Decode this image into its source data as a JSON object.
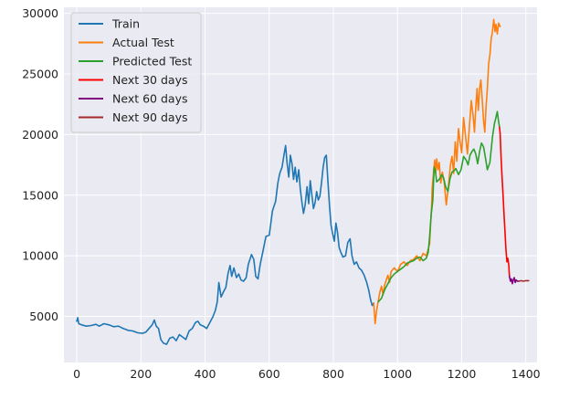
{
  "chart_data": {
    "type": "line",
    "title": "",
    "xlabel": "",
    "ylabel": "",
    "xlim": [
      -40,
      1435
    ],
    "ylim": [
      1200,
      30500
    ],
    "x_ticks": [
      0,
      200,
      400,
      600,
      800,
      1000,
      1200,
      1400
    ],
    "y_ticks": [
      5000,
      10000,
      15000,
      20000,
      25000,
      30000
    ],
    "grid": true,
    "legend_position": "top-left",
    "series": [
      {
        "name": "Train",
        "color": "#1f77b4",
        "points": [
          [
            0,
            4600
          ],
          [
            3,
            4900
          ],
          [
            6,
            4400
          ],
          [
            15,
            4300
          ],
          [
            30,
            4200
          ],
          [
            45,
            4250
          ],
          [
            60,
            4350
          ],
          [
            70,
            4200
          ],
          [
            85,
            4400
          ],
          [
            100,
            4300
          ],
          [
            115,
            4150
          ],
          [
            130,
            4200
          ],
          [
            145,
            4000
          ],
          [
            160,
            3850
          ],
          [
            175,
            3800
          ],
          [
            190,
            3650
          ],
          [
            205,
            3600
          ],
          [
            215,
            3700
          ],
          [
            225,
            4000
          ],
          [
            235,
            4300
          ],
          [
            242,
            4700
          ],
          [
            248,
            4200
          ],
          [
            255,
            4000
          ],
          [
            262,
            3100
          ],
          [
            270,
            2800
          ],
          [
            280,
            2700
          ],
          [
            290,
            3200
          ],
          [
            300,
            3300
          ],
          [
            310,
            3000
          ],
          [
            320,
            3500
          ],
          [
            330,
            3300
          ],
          [
            340,
            3100
          ],
          [
            350,
            3800
          ],
          [
            360,
            4000
          ],
          [
            370,
            4500
          ],
          [
            378,
            4600
          ],
          [
            385,
            4300
          ],
          [
            395,
            4200
          ],
          [
            405,
            4000
          ],
          [
            415,
            4500
          ],
          [
            425,
            5000
          ],
          [
            432,
            5500
          ],
          [
            438,
            6200
          ],
          [
            443,
            7800
          ],
          [
            450,
            6600
          ],
          [
            457,
            7000
          ],
          [
            465,
            7400
          ],
          [
            472,
            8600
          ],
          [
            478,
            9200
          ],
          [
            483,
            8300
          ],
          [
            490,
            9000
          ],
          [
            498,
            8200
          ],
          [
            505,
            8500
          ],
          [
            512,
            8000
          ],
          [
            520,
            7900
          ],
          [
            528,
            8200
          ],
          [
            535,
            9300
          ],
          [
            545,
            10100
          ],
          [
            552,
            9700
          ],
          [
            558,
            8300
          ],
          [
            565,
            8100
          ],
          [
            572,
            9300
          ],
          [
            580,
            10300
          ],
          [
            590,
            11600
          ],
          [
            600,
            11700
          ],
          [
            610,
            13700
          ],
          [
            620,
            14500
          ],
          [
            627,
            16000
          ],
          [
            633,
            16800
          ],
          [
            640,
            17300
          ],
          [
            646,
            18300
          ],
          [
            651,
            19100
          ],
          [
            656,
            17600
          ],
          [
            661,
            16500
          ],
          [
            666,
            18300
          ],
          [
            671,
            17600
          ],
          [
            676,
            16300
          ],
          [
            681,
            17300
          ],
          [
            686,
            16100
          ],
          [
            692,
            17100
          ],
          [
            697,
            15500
          ],
          [
            702,
            14400
          ],
          [
            707,
            13500
          ],
          [
            712,
            14200
          ],
          [
            718,
            15700
          ],
          [
            723,
            14300
          ],
          [
            728,
            16200
          ],
          [
            733,
            15000
          ],
          [
            738,
            13900
          ],
          [
            743,
            14400
          ],
          [
            748,
            15300
          ],
          [
            753,
            14600
          ],
          [
            758,
            14900
          ],
          [
            763,
            16000
          ],
          [
            768,
            17300
          ],
          [
            773,
            18100
          ],
          [
            778,
            18300
          ],
          [
            783,
            16200
          ],
          [
            788,
            14100
          ],
          [
            793,
            12500
          ],
          [
            798,
            11800
          ],
          [
            803,
            11200
          ],
          [
            808,
            12700
          ],
          [
            813,
            11900
          ],
          [
            818,
            10700
          ],
          [
            823,
            10300
          ],
          [
            830,
            9900
          ],
          [
            838,
            10000
          ],
          [
            845,
            11100
          ],
          [
            852,
            11400
          ],
          [
            858,
            10000
          ],
          [
            865,
            9300
          ],
          [
            872,
            9500
          ],
          [
            880,
            9000
          ],
          [
            888,
            8800
          ],
          [
            896,
            8400
          ],
          [
            904,
            7800
          ],
          [
            910,
            7200
          ],
          [
            916,
            6400
          ],
          [
            921,
            5900
          ],
          [
            926,
            6100
          ]
        ]
      },
      {
        "name": "Actual Test",
        "color": "#ff7f0e",
        "points": [
          [
            926,
            6100
          ],
          [
            930,
            4400
          ],
          [
            935,
            5500
          ],
          [
            940,
            6300
          ],
          [
            945,
            7000
          ],
          [
            950,
            7500
          ],
          [
            955,
            6800
          ],
          [
            960,
            7600
          ],
          [
            965,
            8000
          ],
          [
            970,
            8400
          ],
          [
            975,
            7800
          ],
          [
            980,
            8700
          ],
          [
            990,
            9000
          ],
          [
            1000,
            8700
          ],
          [
            1010,
            9300
          ],
          [
            1020,
            9500
          ],
          [
            1030,
            9200
          ],
          [
            1040,
            9600
          ],
          [
            1050,
            9700
          ],
          [
            1060,
            10000
          ],
          [
            1070,
            9600
          ],
          [
            1080,
            10200
          ],
          [
            1090,
            10000
          ],
          [
            1095,
            10500
          ],
          [
            1100,
            11000
          ],
          [
            1103,
            12500
          ],
          [
            1106,
            14000
          ],
          [
            1108,
            15600
          ],
          [
            1110,
            16200
          ],
          [
            1113,
            17100
          ],
          [
            1116,
            17900
          ],
          [
            1119,
            16800
          ],
          [
            1122,
            18000
          ],
          [
            1126,
            17100
          ],
          [
            1130,
            17700
          ],
          [
            1135,
            16000
          ],
          [
            1140,
            16900
          ],
          [
            1146,
            16000
          ],
          [
            1152,
            14200
          ],
          [
            1158,
            15500
          ],
          [
            1165,
            17500
          ],
          [
            1170,
            18200
          ],
          [
            1175,
            16800
          ],
          [
            1180,
            19400
          ],
          [
            1185,
            17800
          ],
          [
            1190,
            20500
          ],
          [
            1195,
            19400
          ],
          [
            1200,
            18500
          ],
          [
            1206,
            21400
          ],
          [
            1212,
            19900
          ],
          [
            1218,
            18400
          ],
          [
            1224,
            20600
          ],
          [
            1230,
            22800
          ],
          [
            1236,
            21500
          ],
          [
            1240,
            20200
          ],
          [
            1244,
            22200
          ],
          [
            1248,
            23800
          ],
          [
            1252,
            22000
          ],
          [
            1256,
            23800
          ],
          [
            1260,
            24500
          ],
          [
            1264,
            23000
          ],
          [
            1268,
            21200
          ],
          [
            1272,
            20200
          ],
          [
            1276,
            22300
          ],
          [
            1280,
            23800
          ],
          [
            1284,
            25800
          ],
          [
            1288,
            26600
          ],
          [
            1292,
            27900
          ],
          [
            1296,
            28500
          ],
          [
            1300,
            29500
          ],
          [
            1304,
            28500
          ],
          [
            1307,
            29100
          ],
          [
            1311,
            28300
          ],
          [
            1315,
            29200
          ],
          [
            1320,
            28900
          ]
        ]
      },
      {
        "name": "Predicted Test",
        "color": "#2ca02c",
        "points": [
          [
            940,
            6200
          ],
          [
            950,
            6500
          ],
          [
            960,
            7200
          ],
          [
            970,
            7700
          ],
          [
            980,
            8200
          ],
          [
            990,
            8500
          ],
          [
            1000,
            8700
          ],
          [
            1010,
            8900
          ],
          [
            1020,
            9100
          ],
          [
            1030,
            9400
          ],
          [
            1040,
            9500
          ],
          [
            1050,
            9600
          ],
          [
            1060,
            9800
          ],
          [
            1070,
            9900
          ],
          [
            1080,
            9600
          ],
          [
            1090,
            9800
          ],
          [
            1096,
            10300
          ],
          [
            1100,
            11600
          ],
          [
            1105,
            13400
          ],
          [
            1110,
            14600
          ],
          [
            1114,
            17300
          ],
          [
            1118,
            17000
          ],
          [
            1122,
            16100
          ],
          [
            1130,
            16300
          ],
          [
            1138,
            16700
          ],
          [
            1144,
            16400
          ],
          [
            1150,
            15700
          ],
          [
            1157,
            15300
          ],
          [
            1164,
            16400
          ],
          [
            1170,
            16900
          ],
          [
            1176,
            17000
          ],
          [
            1182,
            17200
          ],
          [
            1190,
            16700
          ],
          [
            1198,
            17100
          ],
          [
            1206,
            18200
          ],
          [
            1214,
            17900
          ],
          [
            1220,
            17500
          ],
          [
            1226,
            18300
          ],
          [
            1232,
            18600
          ],
          [
            1238,
            18800
          ],
          [
            1244,
            18400
          ],
          [
            1250,
            17600
          ],
          [
            1256,
            18600
          ],
          [
            1262,
            19300
          ],
          [
            1268,
            19000
          ],
          [
            1274,
            18100
          ],
          [
            1280,
            17100
          ],
          [
            1288,
            17700
          ],
          [
            1296,
            19800
          ],
          [
            1302,
            20900
          ],
          [
            1306,
            21300
          ],
          [
            1311,
            21900
          ],
          [
            1314,
            21300
          ],
          [
            1318,
            20600
          ]
        ]
      },
      {
        "name": "Next 30 days",
        "color": "#ff0000",
        "points": [
          [
            1318,
            20600
          ],
          [
            1320,
            20100
          ],
          [
            1323,
            18000
          ],
          [
            1326,
            16500
          ],
          [
            1329,
            15000
          ],
          [
            1332,
            13500
          ],
          [
            1335,
            12000
          ],
          [
            1338,
            10600
          ],
          [
            1341,
            9500
          ],
          [
            1344,
            9800
          ],
          [
            1347,
            9200
          ],
          [
            1349,
            8300
          ]
        ]
      },
      {
        "name": "Next 60 days",
        "color": "#800080",
        "points": [
          [
            1349,
            8300
          ],
          [
            1352,
            7900
          ],
          [
            1355,
            8100
          ],
          [
            1358,
            7700
          ],
          [
            1361,
            8000
          ],
          [
            1364,
            8200
          ],
          [
            1367,
            7800
          ],
          [
            1370,
            8000
          ],
          [
            1374,
            7900
          ],
          [
            1378,
            7900
          ]
        ]
      },
      {
        "name": "Next 90 days",
        "color": "#a52a2a",
        "points": [
          [
            1378,
            7900
          ],
          [
            1385,
            7950
          ],
          [
            1392,
            7900
          ],
          [
            1400,
            7950
          ],
          [
            1409,
            7950
          ]
        ]
      }
    ]
  }
}
